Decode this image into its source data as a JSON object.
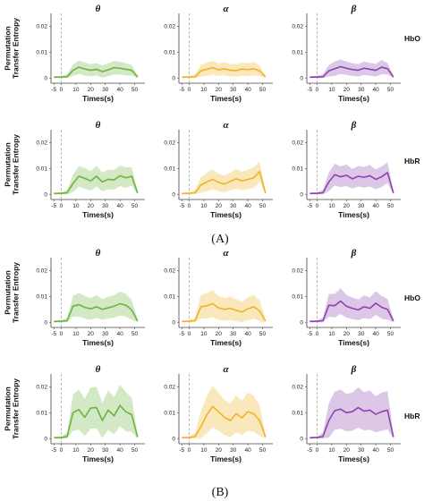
{
  "figure": {
    "panel_labels": [
      "(A)",
      "(B)"
    ],
    "row_labels": [
      "HbO",
      "HbR",
      "HbO",
      "HbR"
    ],
    "ylabel_line1": "Permutation",
    "ylabel_line2": "Transfer Entropy",
    "xlabel": "Times(s)",
    "band_titles": [
      "θ",
      "α",
      "β"
    ],
    "band_colors": {
      "θ": "#6db33f",
      "α": "#f0b323",
      "β": "#8e44ad"
    },
    "x_ticks": [
      "-5",
      "0",
      "10",
      "20",
      "30",
      "40",
      "50"
    ],
    "y_ticks": [
      "0",
      "0.01",
      "0.02"
    ]
  },
  "chart_data": [
    {
      "type": "line",
      "panel": "(A)",
      "row": "HbO",
      "band": "θ",
      "xlim": [
        -7,
        57
      ],
      "ylim": [
        -0.002,
        0.025
      ],
      "stimulus_onset": 0,
      "x": [
        -5,
        0,
        4,
        8,
        12,
        16,
        20,
        24,
        28,
        32,
        36,
        40,
        44,
        48,
        52
      ],
      "series": [
        {
          "mean": [
            0.0003,
            0.0004,
            0.0005,
            0.003,
            0.0042,
            0.0035,
            0.003,
            0.0034,
            0.0025,
            0.0032,
            0.004,
            0.0038,
            0.0034,
            0.003,
            0.0004
          ],
          "band_width": [
            0.0004,
            0.0004,
            0.001,
            0.0022,
            0.0026,
            0.0025,
            0.0024,
            0.0024,
            0.0024,
            0.0025,
            0.0026,
            0.0025,
            0.0024,
            0.002,
            0.0006
          ]
        }
      ]
    },
    {
      "type": "line",
      "panel": "(A)",
      "row": "HbO",
      "band": "α",
      "xlim": [
        -7,
        57
      ],
      "ylim": [
        -0.002,
        0.025
      ],
      "stimulus_onset": 0,
      "x": [
        -5,
        0,
        4,
        8,
        12,
        16,
        20,
        24,
        28,
        32,
        36,
        40,
        44,
        48,
        52
      ],
      "series": [
        {
          "mean": [
            0.0003,
            0.0004,
            0.0005,
            0.0028,
            0.0034,
            0.004,
            0.0032,
            0.0036,
            0.003,
            0.0029,
            0.0035,
            0.0032,
            0.0036,
            0.0028,
            0.0004
          ],
          "band_width": [
            0.0004,
            0.0004,
            0.001,
            0.0022,
            0.0026,
            0.0026,
            0.0024,
            0.0025,
            0.0024,
            0.0024,
            0.0026,
            0.0025,
            0.0026,
            0.002,
            0.0006
          ]
        }
      ]
    },
    {
      "type": "line",
      "panel": "(A)",
      "row": "HbO",
      "band": "β",
      "xlim": [
        -7,
        57
      ],
      "ylim": [
        -0.002,
        0.025
      ],
      "stimulus_onset": 0,
      "x": [
        -5,
        0,
        4,
        8,
        12,
        16,
        20,
        24,
        28,
        32,
        36,
        40,
        44,
        48,
        52
      ],
      "series": [
        {
          "mean": [
            0.0003,
            0.0004,
            0.0005,
            0.0028,
            0.0036,
            0.0044,
            0.0038,
            0.0033,
            0.003,
            0.0038,
            0.0034,
            0.003,
            0.0042,
            0.0036,
            0.0004
          ],
          "band_width": [
            0.0004,
            0.0004,
            0.001,
            0.0022,
            0.0028,
            0.0028,
            0.0026,
            0.0025,
            0.0024,
            0.0026,
            0.0025,
            0.0024,
            0.0028,
            0.0022,
            0.0006
          ]
        }
      ]
    },
    {
      "type": "line",
      "panel": "(A)",
      "row": "HbR",
      "band": "θ",
      "xlim": [
        -7,
        57
      ],
      "ylim": [
        -0.002,
        0.025
      ],
      "stimulus_onset": 0,
      "x": [
        -5,
        0,
        4,
        8,
        12,
        16,
        20,
        24,
        28,
        32,
        36,
        40,
        44,
        48,
        52
      ],
      "series": [
        {
          "mean": [
            0.0003,
            0.0004,
            0.0006,
            0.0042,
            0.007,
            0.0062,
            0.0052,
            0.007,
            0.0048,
            0.0058,
            0.0056,
            0.0072,
            0.0064,
            0.007,
            0.0005
          ],
          "band_width": [
            0.0004,
            0.0004,
            0.0012,
            0.0034,
            0.004,
            0.004,
            0.0038,
            0.004,
            0.0036,
            0.0038,
            0.0038,
            0.004,
            0.004,
            0.0036,
            0.0008
          ]
        }
      ]
    },
    {
      "type": "line",
      "panel": "(A)",
      "row": "HbR",
      "band": "α",
      "xlim": [
        -7,
        57
      ],
      "ylim": [
        -0.002,
        0.025
      ],
      "stimulus_onset": 0,
      "x": [
        -5,
        0,
        4,
        8,
        12,
        16,
        20,
        24,
        28,
        32,
        36,
        40,
        44,
        48,
        52
      ],
      "series": [
        {
          "mean": [
            0.0003,
            0.0004,
            0.0006,
            0.0036,
            0.0048,
            0.0058,
            0.0046,
            0.004,
            0.005,
            0.006,
            0.0052,
            0.0058,
            0.0064,
            0.0088,
            0.0005
          ],
          "band_width": [
            0.0004,
            0.0004,
            0.0012,
            0.003,
            0.0036,
            0.0038,
            0.0034,
            0.0032,
            0.0034,
            0.0038,
            0.0036,
            0.0038,
            0.004,
            0.004,
            0.0008
          ]
        }
      ]
    },
    {
      "type": "line",
      "panel": "(A)",
      "row": "HbR",
      "band": "β",
      "xlim": [
        -7,
        57
      ],
      "ylim": [
        -0.002,
        0.025
      ],
      "stimulus_onset": 0,
      "x": [
        -5,
        0,
        4,
        8,
        12,
        16,
        20,
        24,
        28,
        32,
        36,
        40,
        44,
        48,
        52
      ],
      "series": [
        {
          "mean": [
            0.0003,
            0.0004,
            0.0006,
            0.0048,
            0.0076,
            0.0068,
            0.0074,
            0.006,
            0.007,
            0.0066,
            0.0072,
            0.0058,
            0.0068,
            0.0084,
            0.0005
          ],
          "band_width": [
            0.0004,
            0.0004,
            0.0012,
            0.0036,
            0.0042,
            0.004,
            0.0042,
            0.0038,
            0.004,
            0.004,
            0.0042,
            0.0038,
            0.004,
            0.004,
            0.0008
          ]
        }
      ]
    },
    {
      "type": "line",
      "panel": "(B)",
      "row": "HbO",
      "band": "θ",
      "xlim": [
        -7,
        57
      ],
      "ylim": [
        -0.002,
        0.025
      ],
      "stimulus_onset": 0,
      "x": [
        -5,
        0,
        4,
        8,
        12,
        16,
        20,
        24,
        28,
        32,
        36,
        40,
        44,
        48,
        52
      ],
      "series": [
        {
          "mean": [
            0.0003,
            0.0004,
            0.0006,
            0.0062,
            0.0068,
            0.0058,
            0.0052,
            0.006,
            0.005,
            0.0056,
            0.0062,
            0.0072,
            0.0066,
            0.0048,
            0.0005
          ],
          "band_width": [
            0.0004,
            0.0004,
            0.0012,
            0.004,
            0.0046,
            0.0044,
            0.0042,
            0.0044,
            0.004,
            0.0042,
            0.0044,
            0.0046,
            0.0044,
            0.0038,
            0.0008
          ]
        }
      ]
    },
    {
      "type": "line",
      "panel": "(B)",
      "row": "HbO",
      "band": "α",
      "xlim": [
        -7,
        57
      ],
      "ylim": [
        -0.002,
        0.025
      ],
      "stimulus_onset": 0,
      "x": [
        -5,
        0,
        4,
        8,
        12,
        16,
        20,
        24,
        28,
        32,
        36,
        40,
        44,
        48,
        52
      ],
      "series": [
        {
          "mean": [
            0.0003,
            0.0004,
            0.0006,
            0.006,
            0.0064,
            0.0072,
            0.0056,
            0.005,
            0.0054,
            0.0046,
            0.004,
            0.0052,
            0.006,
            0.0044,
            0.0005
          ],
          "band_width": [
            0.0004,
            0.0004,
            0.0012,
            0.0046,
            0.005,
            0.0052,
            0.0046,
            0.0044,
            0.0046,
            0.0042,
            0.004,
            0.0044,
            0.0046,
            0.004,
            0.0008
          ]
        }
      ]
    },
    {
      "type": "line",
      "panel": "(B)",
      "row": "HbO",
      "band": "β",
      "xlim": [
        -7,
        57
      ],
      "ylim": [
        -0.002,
        0.025
      ],
      "stimulus_onset": 0,
      "x": [
        -5,
        0,
        4,
        8,
        12,
        16,
        20,
        24,
        28,
        32,
        36,
        40,
        44,
        48,
        52
      ],
      "series": [
        {
          "mean": [
            0.0003,
            0.0004,
            0.0006,
            0.0066,
            0.0064,
            0.0082,
            0.0062,
            0.0054,
            0.0048,
            0.006,
            0.0054,
            0.0074,
            0.0058,
            0.005,
            0.0005
          ],
          "band_width": [
            0.0004,
            0.0004,
            0.0012,
            0.0044,
            0.0046,
            0.005,
            0.0044,
            0.0042,
            0.004,
            0.0044,
            0.0042,
            0.0046,
            0.0044,
            0.004,
            0.0008
          ]
        }
      ]
    },
    {
      "type": "line",
      "panel": "(B)",
      "row": "HbR",
      "band": "θ",
      "xlim": [
        -7,
        57
      ],
      "ylim": [
        -0.002,
        0.025
      ],
      "stimulus_onset": 0,
      "x": [
        -5,
        0,
        4,
        8,
        12,
        16,
        20,
        24,
        28,
        32,
        36,
        40,
        44,
        48,
        52
      ],
      "series": [
        {
          "mean": [
            0.0003,
            0.0004,
            0.0008,
            0.01,
            0.0112,
            0.0082,
            0.0118,
            0.012,
            0.007,
            0.011,
            0.0088,
            0.0128,
            0.0104,
            0.0092,
            0.0006
          ],
          "band_width": [
            0.0004,
            0.0004,
            0.0016,
            0.007,
            0.0078,
            0.0072,
            0.008,
            0.008,
            0.0068,
            0.0076,
            0.0072,
            0.008,
            0.0076,
            0.0066,
            0.001
          ]
        }
      ]
    },
    {
      "type": "line",
      "panel": "(B)",
      "row": "HbR",
      "band": "α",
      "xlim": [
        -7,
        57
      ],
      "ylim": [
        -0.002,
        0.025
      ],
      "stimulus_onset": 0,
      "x": [
        -5,
        0,
        4,
        8,
        12,
        16,
        20,
        24,
        28,
        32,
        36,
        40,
        44,
        48,
        52
      ],
      "series": [
        {
          "mean": [
            0.0003,
            0.0004,
            0.0008,
            0.0046,
            0.0092,
            0.0124,
            0.0104,
            0.0082,
            0.007,
            0.0096,
            0.008,
            0.0104,
            0.0096,
            0.007,
            0.0006
          ],
          "band_width": [
            0.0004,
            0.0004,
            0.0016,
            0.006,
            0.0072,
            0.008,
            0.0074,
            0.0068,
            0.0064,
            0.0072,
            0.0066,
            0.0074,
            0.007,
            0.006,
            0.001
          ]
        }
      ]
    },
    {
      "type": "line",
      "panel": "(B)",
      "row": "HbR",
      "band": "β",
      "xlim": [
        -7,
        57
      ],
      "ylim": [
        -0.002,
        0.025
      ],
      "stimulus_onset": 0,
      "x": [
        -5,
        0,
        4,
        8,
        12,
        16,
        20,
        24,
        28,
        32,
        36,
        40,
        44,
        48,
        52
      ],
      "series": [
        {
          "mean": [
            0.0003,
            0.0004,
            0.0008,
            0.007,
            0.0108,
            0.0114,
            0.01,
            0.0104,
            0.012,
            0.0106,
            0.011,
            0.0094,
            0.0104,
            0.011,
            0.0006
          ],
          "band_width": [
            0.0004,
            0.0004,
            0.0016,
            0.0066,
            0.0074,
            0.0076,
            0.0072,
            0.0074,
            0.0078,
            0.0074,
            0.0076,
            0.007,
            0.0074,
            0.0074,
            0.001
          ]
        }
      ]
    }
  ]
}
